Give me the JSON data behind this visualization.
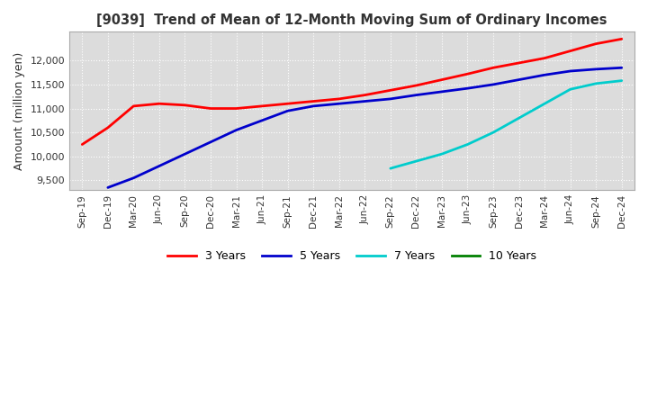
{
  "title": "[9039]  Trend of Mean of 12-Month Moving Sum of Ordinary Incomes",
  "ylabel": "Amount (million yen)",
  "ylim": [
    9300,
    12600
  ],
  "yticks": [
    9500,
    10000,
    10500,
    11000,
    11500,
    12000
  ],
  "background_color": "#dcdcdc",
  "grid_color": "#ffffff",
  "line_colors": {
    "3yr": "#ff0000",
    "5yr": "#0000cc",
    "7yr": "#00cccc",
    "10yr": "#008000"
  },
  "legend_labels": [
    "3 Years",
    "5 Years",
    "7 Years",
    "10 Years"
  ],
  "x_labels": [
    "Sep-19",
    "Dec-19",
    "Mar-20",
    "Jun-20",
    "Sep-20",
    "Dec-20",
    "Mar-21",
    "Jun-21",
    "Sep-21",
    "Dec-21",
    "Mar-22",
    "Jun-22",
    "Sep-22",
    "Dec-22",
    "Mar-23",
    "Jun-23",
    "Sep-23",
    "Dec-23",
    "Mar-24",
    "Jun-24",
    "Sep-24",
    "Dec-24"
  ],
  "data_3yr": [
    10250,
    10600,
    11050,
    11100,
    11070,
    11000,
    11000,
    11050,
    11100,
    11150,
    11200,
    11280,
    11380,
    11480,
    11600,
    11720,
    11850,
    11950,
    12050,
    12200,
    12350,
    12450
  ],
  "data_5yr": [
    null,
    9350,
    9550,
    9800,
    10050,
    10300,
    10550,
    10750,
    10950,
    11050,
    11100,
    11150,
    11200,
    11280,
    11350,
    11420,
    11500,
    11600,
    11700,
    11780,
    11820,
    11850
  ],
  "data_7yr": [
    null,
    null,
    null,
    null,
    null,
    null,
    null,
    null,
    null,
    null,
    null,
    null,
    9750,
    9900,
    10050,
    10250,
    10500,
    10800,
    11100,
    11400,
    11520,
    11580
  ],
  "data_10yr": [
    null,
    null,
    null,
    null,
    null,
    null,
    null,
    null,
    null,
    null,
    null,
    null,
    null,
    null,
    null,
    null,
    null,
    null,
    null,
    null,
    null,
    null
  ]
}
